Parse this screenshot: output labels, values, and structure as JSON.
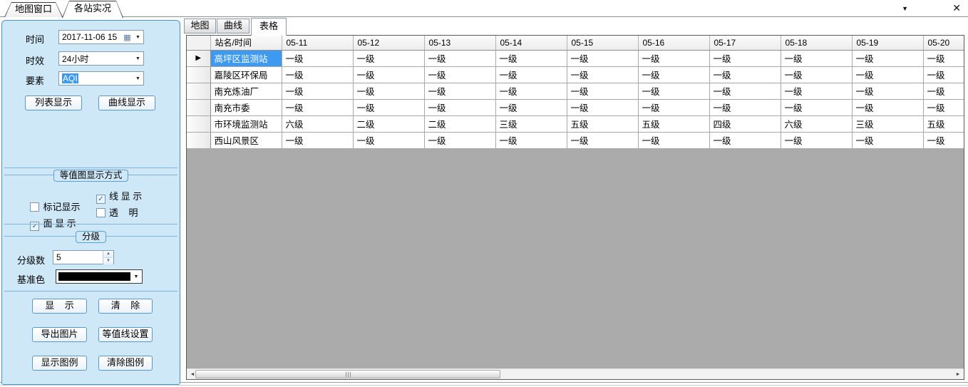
{
  "window_tabs": [
    {
      "label": "地图窗口",
      "active": false
    },
    {
      "label": "各站实况",
      "active": true
    }
  ],
  "window_controls": {
    "tab_list_icon": "▼",
    "close_icon": "✕"
  },
  "sidebar": {
    "time_field": {
      "label": "时间",
      "value": "2017-11-06 15",
      "calendar_icon": "▦",
      "dropdown_icon": "▼"
    },
    "duration_field": {
      "label": "时效",
      "value": "24小时",
      "dropdown_icon": "▼"
    },
    "element_field": {
      "label": "要素",
      "value": "AQI",
      "dropdown_icon": "▼",
      "value_selected": true
    },
    "list_button": "列表显示",
    "curve_button": "曲线显示",
    "display_group": {
      "title": "等值图显示方式",
      "checkboxes": [
        {
          "label": "标记显示",
          "checked": false
        },
        {
          "label": "线 显 示",
          "checked": true
        },
        {
          "label": "面 显 示",
          "checked": true
        },
        {
          "label": "透    明",
          "checked": false
        }
      ],
      "check_glyph": "✓"
    },
    "grading_group": {
      "title": "分级",
      "levels_label": "分级数",
      "levels_value": "5",
      "spinner_up_icon": "▲",
      "spinner_down_icon": "▼",
      "base_color_label": "基准色",
      "base_color": "#000000",
      "dropdown_icon": "▼"
    },
    "action_buttons": [
      {
        "id": "show",
        "label": "显    示"
      },
      {
        "id": "clear",
        "label": "清    除"
      },
      {
        "id": "export-image",
        "label": "导出图片"
      },
      {
        "id": "isoline-settings",
        "label": "等值线设置"
      },
      {
        "id": "show-legend",
        "label": "显示图例"
      },
      {
        "id": "clear-legend",
        "label": "清除图例"
      }
    ]
  },
  "content": {
    "tabs": [
      {
        "label": "地图",
        "active": false
      },
      {
        "label": "曲线",
        "active": false
      },
      {
        "label": "表格",
        "active": true
      }
    ],
    "table": {
      "columns": [
        "站名/时间",
        "05-11",
        "05-12",
        "05-13",
        "05-14",
        "05-15",
        "05-16",
        "05-17",
        "05-18",
        "05-19",
        "05-20"
      ],
      "selected_row": 0,
      "row_selector_icon": "▶",
      "rows": [
        {
          "station": "高坪区监测站",
          "values": [
            "一级",
            "一级",
            "一级",
            "一级",
            "一级",
            "一级",
            "一级",
            "一级",
            "一级",
            "一级"
          ]
        },
        {
          "station": "嘉陵区环保局",
          "values": [
            "一级",
            "一级",
            "一级",
            "一级",
            "一级",
            "一级",
            "一级",
            "一级",
            "一级",
            "一级"
          ]
        },
        {
          "station": "南充炼油厂",
          "values": [
            "一级",
            "一级",
            "一级",
            "一级",
            "一级",
            "一级",
            "一级",
            "一级",
            "一级",
            "一级"
          ]
        },
        {
          "station": "南充市委",
          "values": [
            "一级",
            "一级",
            "一级",
            "一级",
            "一级",
            "一级",
            "一级",
            "一级",
            "一级",
            "一级"
          ]
        },
        {
          "station": "市环境监测站",
          "values": [
            "六级",
            "二级",
            "二级",
            "三级",
            "五级",
            "五级",
            "四级",
            "六级",
            "三级",
            "五级"
          ]
        },
        {
          "station": "西山风景区",
          "values": [
            "一级",
            "一级",
            "一级",
            "一级",
            "一级",
            "一级",
            "一级",
            "一级",
            "一级",
            "一级"
          ]
        }
      ]
    },
    "scrollbar": {
      "left_icon": "◄",
      "right_icon": "►"
    }
  },
  "colors": {
    "selection": "#3d9af0",
    "panel_bg": "#cfe8f8",
    "panel_border": "#4c94c8",
    "table_empty_bg": "#ababab"
  }
}
